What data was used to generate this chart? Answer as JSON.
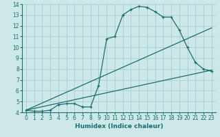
{
  "xlabel": "Humidex (Indice chaleur)",
  "xlim": [
    -0.5,
    23.5
  ],
  "ylim": [
    4,
    14
  ],
  "xticks": [
    0,
    1,
    2,
    3,
    4,
    5,
    6,
    7,
    8,
    9,
    10,
    11,
    12,
    13,
    14,
    15,
    16,
    17,
    18,
    19,
    20,
    21,
    22,
    23
  ],
  "yticks": [
    4,
    5,
    6,
    7,
    8,
    9,
    10,
    11,
    12,
    13,
    14
  ],
  "bg_color": "#cce8e8",
  "grid_color": "#aacccc",
  "line_color": "#1a6b6b",
  "main_x": [
    0,
    1,
    2,
    3,
    4,
    5,
    6,
    7,
    8,
    9,
    10,
    11,
    12,
    13,
    14,
    15,
    16,
    17,
    18,
    19,
    20,
    21,
    22,
    23
  ],
  "main_y": [
    4.2,
    4.1,
    4.1,
    4.2,
    4.7,
    4.8,
    4.8,
    4.5,
    4.5,
    6.5,
    10.8,
    11.0,
    13.0,
    13.5,
    13.8,
    13.7,
    13.3,
    12.8,
    12.8,
    11.6,
    10.0,
    8.6,
    8.0,
    7.8
  ],
  "line1_x": [
    0,
    23
  ],
  "line1_y": [
    4.2,
    7.9
  ],
  "line2_x": [
    0,
    23
  ],
  "line2_y": [
    4.2,
    11.8
  ]
}
